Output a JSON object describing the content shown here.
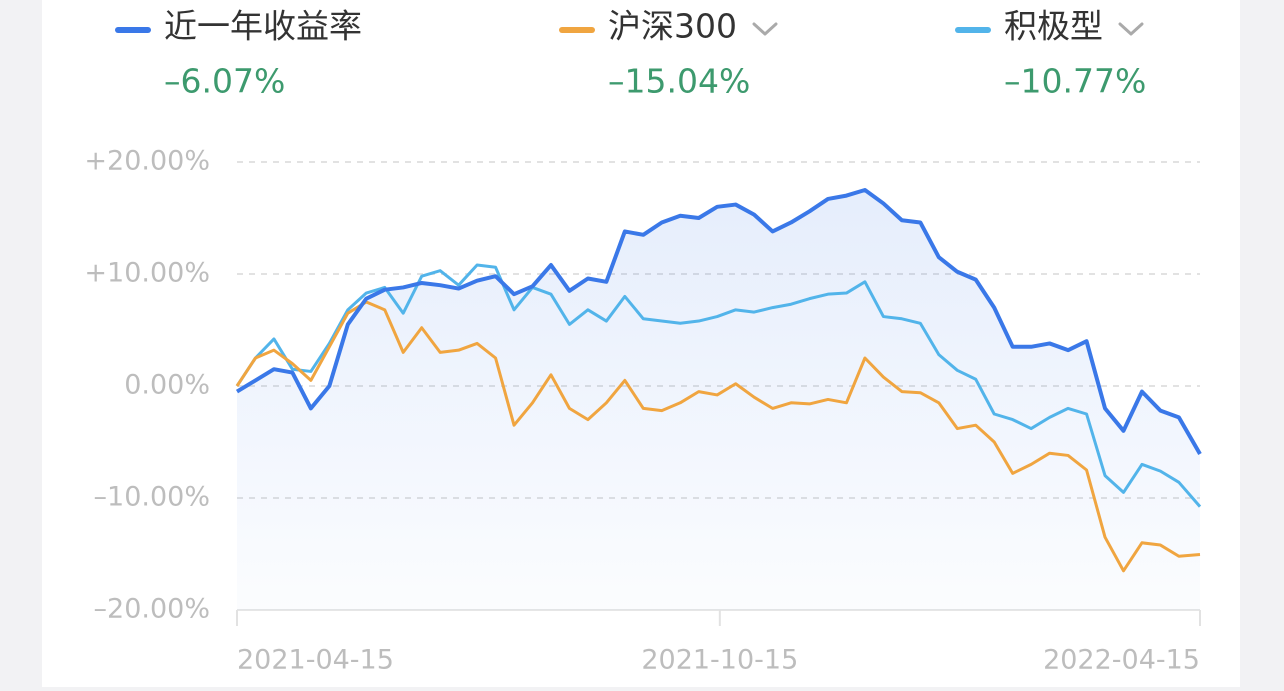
{
  "chart_data": {
    "type": "line",
    "x": [
      "2021-04-15",
      "2021-04-22",
      "2021-04-29",
      "2021-05-06",
      "2021-05-13",
      "2021-05-20",
      "2021-05-27",
      "2021-06-03",
      "2021-06-10",
      "2021-06-17",
      "2021-06-24",
      "2021-07-01",
      "2021-07-08",
      "2021-07-15",
      "2021-07-22",
      "2021-07-29",
      "2021-08-05",
      "2021-08-12",
      "2021-08-19",
      "2021-08-26",
      "2021-09-02",
      "2021-09-09",
      "2021-09-16",
      "2021-09-23",
      "2021-09-30",
      "2021-10-07",
      "2021-10-14",
      "2021-10-21",
      "2021-10-28",
      "2021-11-04",
      "2021-11-11",
      "2021-11-18",
      "2021-11-25",
      "2021-12-02",
      "2021-12-09",
      "2021-12-16",
      "2021-12-23",
      "2021-12-30",
      "2022-01-06",
      "2022-01-13",
      "2022-01-20",
      "2022-01-27",
      "2022-02-03",
      "2022-02-10",
      "2022-02-17",
      "2022-02-24",
      "2022-03-03",
      "2022-03-10",
      "2022-03-17",
      "2022-03-24",
      "2022-03-31",
      "2022-04-07",
      "2022-04-15"
    ],
    "series": [
      {
        "name": "近一年收益率",
        "color": "#3a78e8",
        "latest_label": "–6.07%",
        "area": true,
        "values": [
          -0.5,
          0.5,
          1.5,
          1.2,
          -2.0,
          0.0,
          5.5,
          7.8,
          8.6,
          8.8,
          9.2,
          9.0,
          8.7,
          9.4,
          9.8,
          8.2,
          8.9,
          10.8,
          8.5,
          9.6,
          9.3,
          13.8,
          13.5,
          14.6,
          15.2,
          15.0,
          16.0,
          16.2,
          15.3,
          13.8,
          14.6,
          15.6,
          16.7,
          17.0,
          17.5,
          16.3,
          14.8,
          14.6,
          11.5,
          10.2,
          9.5,
          7.0,
          3.5,
          3.5,
          3.8,
          3.2,
          4.0,
          -2.0,
          -4.0,
          -0.5,
          -2.2,
          -2.8,
          -6.07
        ]
      },
      {
        "name": "沪深300",
        "color": "#f0a540",
        "latest_label": "–15.04%",
        "values": [
          0.0,
          2.5,
          3.2,
          2.0,
          0.5,
          3.5,
          6.5,
          7.5,
          6.8,
          3.0,
          5.2,
          3.0,
          3.2,
          3.8,
          2.5,
          -3.5,
          -1.5,
          1.0,
          -2.0,
          -3.0,
          -1.5,
          0.5,
          -2.0,
          -2.2,
          -1.5,
          -0.5,
          -0.8,
          0.2,
          -1.0,
          -2.0,
          -1.5,
          -1.6,
          -1.2,
          -1.5,
          2.5,
          0.8,
          -0.5,
          -0.6,
          -1.5,
          -3.8,
          -3.5,
          -5.0,
          -7.8,
          -7.0,
          -6.0,
          -6.2,
          -7.5,
          -13.5,
          -16.5,
          -14.0,
          -14.2,
          -15.2,
          -15.04
        ]
      },
      {
        "name": "积极型",
        "color": "#52b4ea",
        "latest_label": "–10.77%",
        "values": [
          0.0,
          2.5,
          4.2,
          1.5,
          1.3,
          3.8,
          6.8,
          8.3,
          8.8,
          6.5,
          9.8,
          10.3,
          9.0,
          10.8,
          10.6,
          6.8,
          8.8,
          8.2,
          5.5,
          6.8,
          5.8,
          8.0,
          6.0,
          5.8,
          5.6,
          5.8,
          6.2,
          6.8,
          6.6,
          7.0,
          7.3,
          7.8,
          8.2,
          8.3,
          9.3,
          6.2,
          6.0,
          5.6,
          2.8,
          1.4,
          0.6,
          -2.5,
          -3.0,
          -3.8,
          -2.8,
          -2.0,
          -2.5,
          -8.0,
          -9.5,
          -7.0,
          -7.6,
          -8.6,
          -10.77
        ]
      }
    ],
    "xlim": [
      "2021-04-15",
      "2022-04-15"
    ],
    "xticks": [
      "2021-04-15",
      "2021-10-15",
      "2022-04-15"
    ],
    "ylim": [
      -20,
      20
    ],
    "yticks": [
      {
        "value": 20,
        "label": "+20.00%"
      },
      {
        "value": 10,
        "label": "+10.00%"
      },
      {
        "value": 0,
        "label": "0.00%"
      },
      {
        "value": -10,
        "label": "–10.00%"
      },
      {
        "value": -20,
        "label": "–20.00%"
      }
    ],
    "grid": true
  }
}
